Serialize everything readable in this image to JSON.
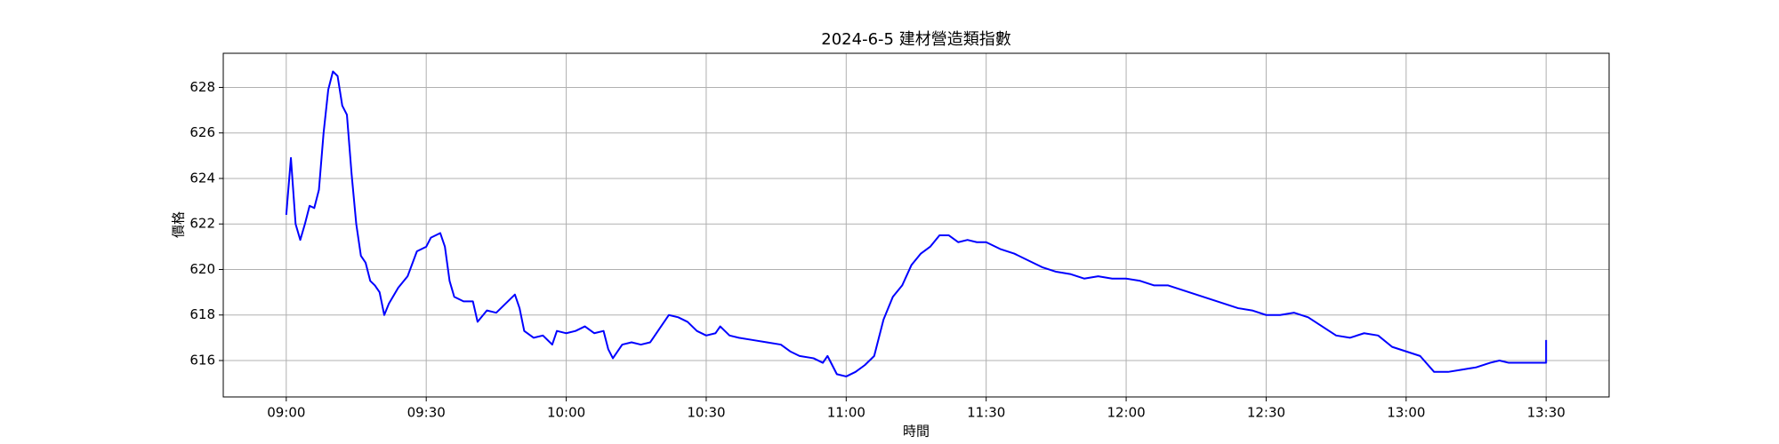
{
  "chart_data": {
    "type": "line",
    "title": "2024-6-5 建材營造類指數",
    "xlabel": "時間",
    "ylabel": "價格",
    "x": [
      540,
      541,
      542,
      543,
      544,
      545,
      546,
      547,
      548,
      549,
      550,
      551,
      552,
      553,
      554,
      555,
      556,
      557,
      558,
      559,
      560,
      561,
      562,
      564,
      566,
      568,
      570,
      571,
      573,
      574,
      575,
      576,
      578,
      580,
      581,
      583,
      585,
      587,
      589,
      590,
      591,
      593,
      595,
      597,
      598,
      600,
      602,
      604,
      606,
      608,
      609,
      610,
      612,
      614,
      616,
      618,
      620,
      622,
      624,
      626,
      628,
      630,
      632,
      633,
      635,
      637,
      640,
      643,
      646,
      648,
      650,
      653,
      655,
      656,
      658,
      660,
      662,
      664,
      666,
      668,
      670,
      672,
      674,
      676,
      678,
      680,
      682,
      684,
      686,
      688,
      690,
      693,
      696,
      699,
      702,
      705,
      708,
      711,
      714,
      717,
      720,
      723,
      726,
      729,
      732,
      735,
      738,
      741,
      744,
      747,
      750,
      753,
      756,
      759,
      762,
      765,
      768,
      771,
      774,
      777,
      780,
      783,
      786,
      789,
      792,
      795,
      798,
      800,
      802,
      805,
      810,
      810
    ],
    "series": [
      {
        "name": "價格",
        "color": "blue",
        "values": [
          622.4,
          624.9,
          622.0,
          621.3,
          622.0,
          622.8,
          622.7,
          623.5,
          626.0,
          627.9,
          628.7,
          628.5,
          627.2,
          626.8,
          624.2,
          622.0,
          620.6,
          620.3,
          619.5,
          619.3,
          619.0,
          618.0,
          618.5,
          619.2,
          619.7,
          620.8,
          621.0,
          621.4,
          621.6,
          621.0,
          619.5,
          618.8,
          618.6,
          618.6,
          617.7,
          618.2,
          618.1,
          618.5,
          618.9,
          618.3,
          617.3,
          617.0,
          617.1,
          616.7,
          617.3,
          617.2,
          617.3,
          617.5,
          617.2,
          617.3,
          616.5,
          616.1,
          616.7,
          616.8,
          616.7,
          616.8,
          617.4,
          618.0,
          617.9,
          617.7,
          617.3,
          617.1,
          617.2,
          617.5,
          617.1,
          617.0,
          616.9,
          616.8,
          616.7,
          616.4,
          616.2,
          616.1,
          615.9,
          616.2,
          615.4,
          615.3,
          615.5,
          615.8,
          616.2,
          617.8,
          618.8,
          619.3,
          620.2,
          620.7,
          621.0,
          621.5,
          621.5,
          621.2,
          621.3,
          621.2,
          621.2,
          620.9,
          620.7,
          620.4,
          620.1,
          619.9,
          619.8,
          619.6,
          619.7,
          619.6,
          619.6,
          619.5,
          619.3,
          619.3,
          619.1,
          618.9,
          618.7,
          618.5,
          618.3,
          618.2,
          618.0,
          618.0,
          618.1,
          617.9,
          617.5,
          617.1,
          617.0,
          617.2,
          617.1,
          616.6,
          616.4,
          616.2,
          615.5,
          615.5,
          615.6,
          615.7,
          615.9,
          616.0,
          615.9,
          615.9,
          615.9,
          616.9
        ]
      }
    ],
    "xlim": [
      526.5,
      823.5
    ],
    "ylim": [
      614.4,
      629.5
    ],
    "xticks": [
      {
        "value": 540,
        "label": "09:00"
      },
      {
        "value": 570,
        "label": "09:30"
      },
      {
        "value": 600,
        "label": "10:00"
      },
      {
        "value": 630,
        "label": "10:30"
      },
      {
        "value": 660,
        "label": "11:00"
      },
      {
        "value": 690,
        "label": "11:30"
      },
      {
        "value": 720,
        "label": "12:00"
      },
      {
        "value": 750,
        "label": "12:30"
      },
      {
        "value": 780,
        "label": "13:00"
      },
      {
        "value": 810,
        "label": "13:30"
      }
    ],
    "yticks": [
      616,
      618,
      620,
      622,
      624,
      626,
      628
    ],
    "grid": true
  }
}
